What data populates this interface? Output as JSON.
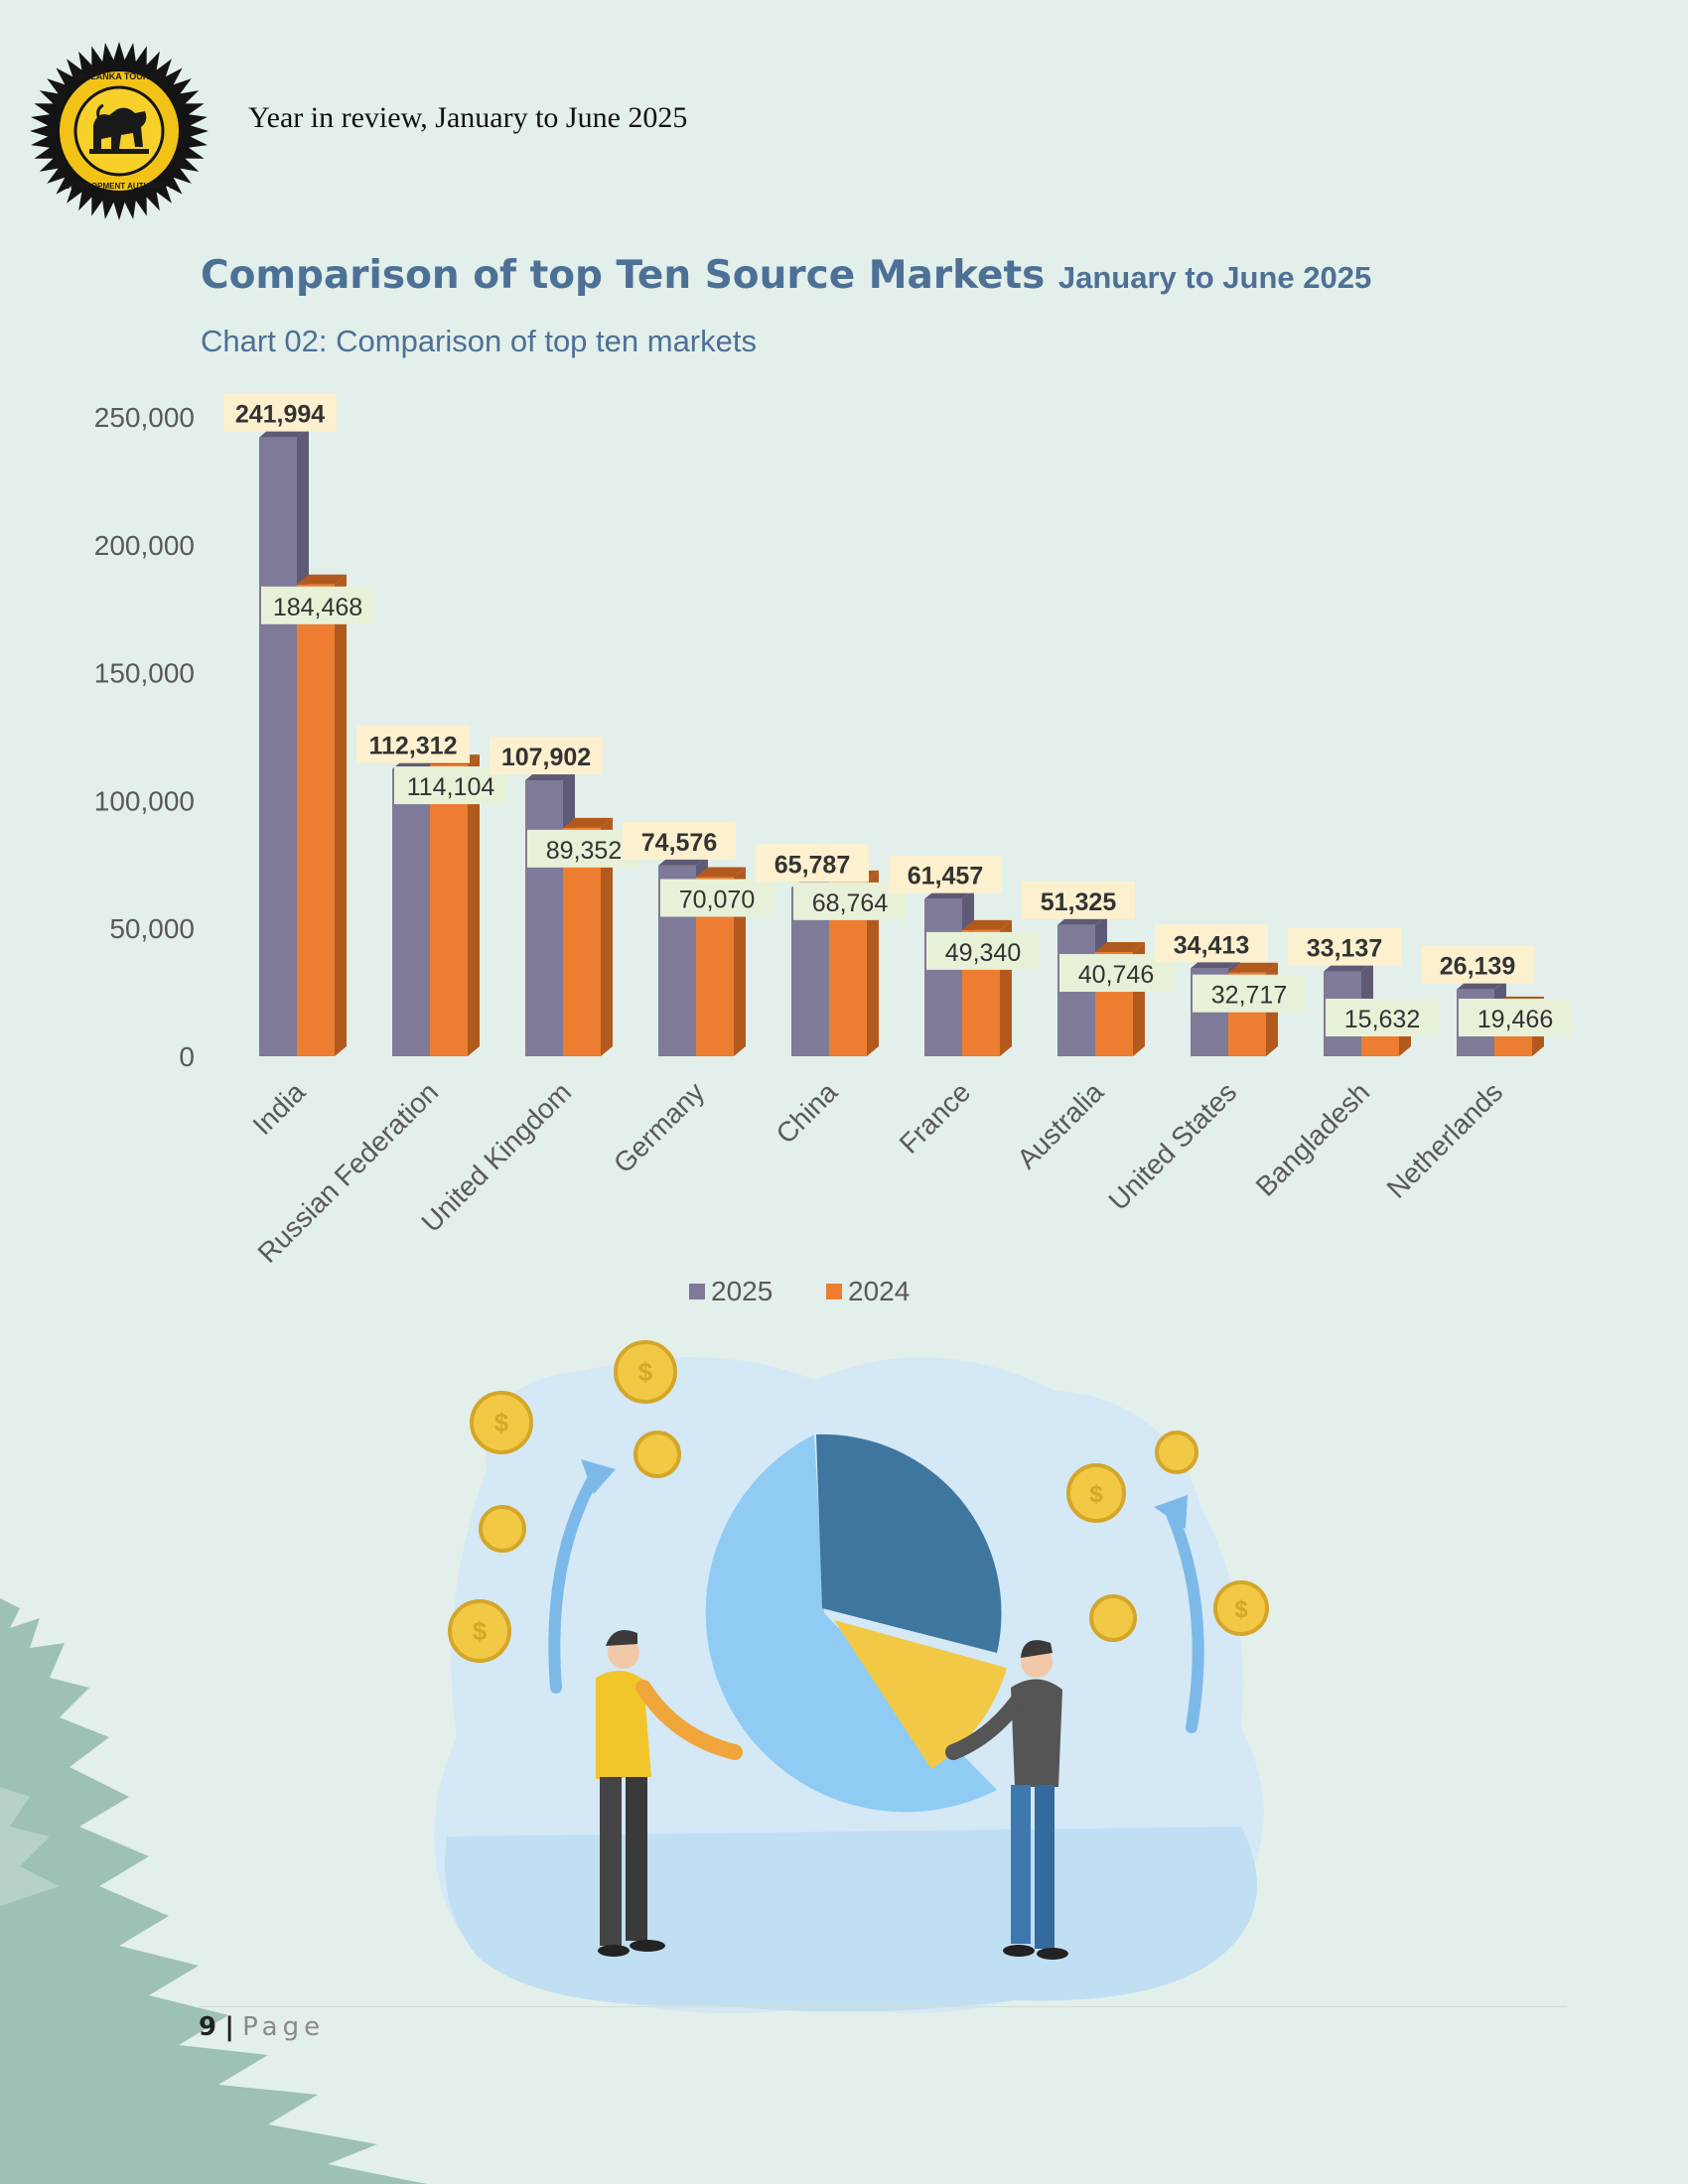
{
  "header": {
    "logo_text": "SRI LANKA TOURISM DEVELOPMENT AUTHORITY",
    "report_title": "Year in review, January to June 2025"
  },
  "section": {
    "title": "Comparison of top Ten Source Markets",
    "title_period": "January to June 2025"
  },
  "chart_data": {
    "type": "bar",
    "title": "Chart 02: Comparison of top ten markets",
    "categories": [
      "India",
      "Russian Federation",
      "United Kingdom",
      "Germany",
      "China",
      "France",
      "Australia",
      "United States",
      "Bangladesh",
      "Netherlands"
    ],
    "series": [
      {
        "name": "2025",
        "values": [
          241994,
          112312,
          107902,
          74576,
          65787,
          61457,
          51325,
          34413,
          33137,
          26139
        ],
        "color": "#7f7a97"
      },
      {
        "name": "2024",
        "values": [
          184468,
          114104,
          89352,
          70070,
          68764,
          49340,
          40746,
          32717,
          15632,
          19466
        ],
        "color": "#ed7d31"
      }
    ],
    "value_labels": {
      "2025": [
        "241,994",
        "112,312",
        "107,902",
        "74,576",
        "65,787",
        "61,457",
        "51,325",
        "34,413",
        "33,137",
        "26,139"
      ],
      "2024": [
        "184,468",
        "114,104",
        "89,352",
        "70,070",
        "68,764",
        "49,340",
        "40,746",
        "32,717",
        "15,632",
        "19,466"
      ]
    },
    "y_ticks": [
      "0",
      "50,000",
      "100,000",
      "150,000",
      "200,000",
      "250,000"
    ],
    "y_tick_values": [
      0,
      50000,
      100000,
      150000,
      200000,
      250000
    ],
    "ylim": [
      0,
      250000
    ],
    "grid": false,
    "legend_position": "bottom"
  },
  "illustration": {
    "icon": "pie-chart-people-coins-illustration"
  },
  "footer": {
    "page_number": "9",
    "separator": "|",
    "page_label": "Page"
  }
}
